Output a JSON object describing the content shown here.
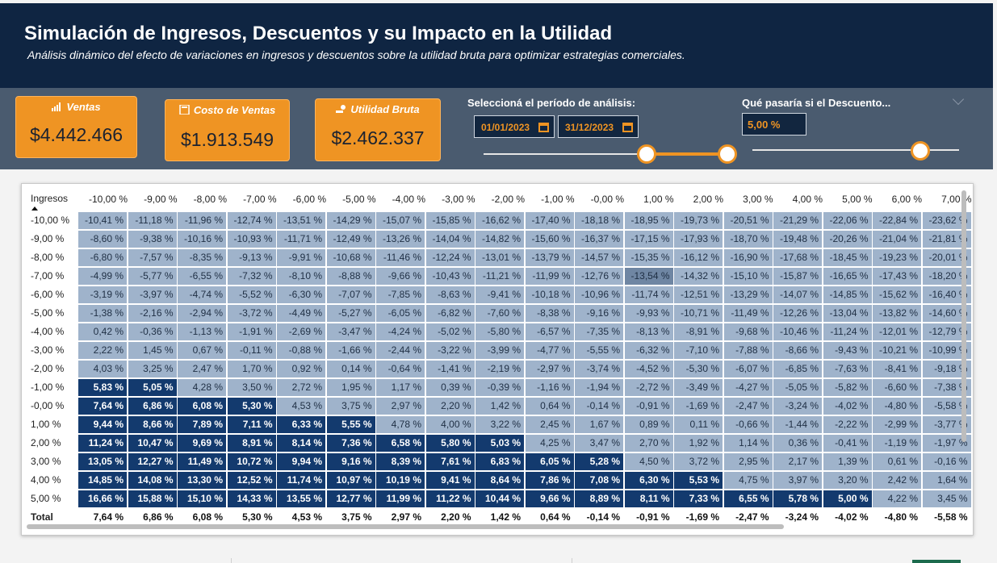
{
  "header": {
    "title": "Simulación de Ingresos, Descuentos y su Impacto en la Utilidad",
    "subtitle": "Análisis dinámico del efecto de variaciones en ingresos y descuentos sobre la utilidad bruta para optimizar estrategias comerciales."
  },
  "kpis": {
    "ventas": {
      "label": "Ventas",
      "value": "$4.442.466",
      "icon": "bar-chart-icon"
    },
    "costo": {
      "label": "Costo de Ventas",
      "value": "$1.913.549",
      "icon": "calculator-icon"
    },
    "utilidad": {
      "label": "Utilidad Bruta",
      "value": "$2.462.337",
      "icon": "money-hand-icon"
    }
  },
  "period_slicer": {
    "title": "Seleccioná el período de análisis:",
    "start": "01/01/2023",
    "end": "31/12/2023",
    "range_fraction": [
      0.0,
      1.0
    ]
  },
  "discount_slicer": {
    "title": "Qué pasaría si el Descuento...",
    "value": "5,00 %",
    "position_fraction": 0.9
  },
  "matrix": {
    "corner_label": "Ingresos",
    "columns": [
      "-10,00 %",
      "-9,00 %",
      "-8,00 %",
      "-7,00 %",
      "-6,00 %",
      "-5,00 %",
      "-4,00 %",
      "-3,00 %",
      "-2,00 %",
      "-1,00 %",
      "-0,00 %",
      "1,00 %",
      "2,00 %",
      "3,00 %",
      "4,00 %",
      "5,00 %",
      "6,00 %",
      "7,00 %"
    ],
    "rows": [
      {
        "label": "-10,00 %",
        "values": [
          "-10,41 %",
          "-11,18 %",
          "-11,96 %",
          "-12,74 %",
          "-13,51 %",
          "-14,29 %",
          "-15,07 %",
          "-15,85 %",
          "-16,62 %",
          "-17,40 %",
          "-18,18 %",
          "-18,95 %",
          "-19,73 %",
          "-20,51 %",
          "-21,29 %",
          "-22,06 %",
          "-22,84 %",
          "-23,62 %"
        ]
      },
      {
        "label": "-9,00 %",
        "values": [
          "-8,60 %",
          "-9,38 %",
          "-10,16 %",
          "-10,93 %",
          "-11,71 %",
          "-12,49 %",
          "-13,26 %",
          "-14,04 %",
          "-14,82 %",
          "-15,60 %",
          "-16,37 %",
          "-17,15 %",
          "-17,93 %",
          "-18,70 %",
          "-19,48 %",
          "-20,26 %",
          "-21,04 %",
          "-21,81 %"
        ]
      },
      {
        "label": "-8,00 %",
        "values": [
          "-6,80 %",
          "-7,57 %",
          "-8,35 %",
          "-9,13 %",
          "-9,91 %",
          "-10,68 %",
          "-11,46 %",
          "-12,24 %",
          "-13,01 %",
          "-13,79 %",
          "-14,57 %",
          "-15,35 %",
          "-16,12 %",
          "-16,90 %",
          "-17,68 %",
          "-18,45 %",
          "-19,23 %",
          "-20,01 %"
        ]
      },
      {
        "label": "-7,00 %",
        "values": [
          "-4,99 %",
          "-5,77 %",
          "-6,55 %",
          "-7,32 %",
          "-8,10 %",
          "-8,88 %",
          "-9,66 %",
          "-10,43 %",
          "-11,21 %",
          "-11,99 %",
          "-12,76 %",
          "-13,54 %",
          "-14,32 %",
          "-15,10 %",
          "-15,87 %",
          "-16,65 %",
          "-17,43 %",
          "-18,20 %"
        ]
      },
      {
        "label": "-6,00 %",
        "values": [
          "-3,19 %",
          "-3,97 %",
          "-4,74 %",
          "-5,52 %",
          "-6,30 %",
          "-7,07 %",
          "-7,85 %",
          "-8,63 %",
          "-9,41 %",
          "-10,18 %",
          "-10,96 %",
          "-11,74 %",
          "-12,51 %",
          "-13,29 %",
          "-14,07 %",
          "-14,85 %",
          "-15,62 %",
          "-16,40 %"
        ]
      },
      {
        "label": "-5,00 %",
        "values": [
          "-1,38 %",
          "-2,16 %",
          "-2,94 %",
          "-3,72 %",
          "-4,49 %",
          "-5,27 %",
          "-6,05 %",
          "-6,82 %",
          "-7,60 %",
          "-8,38 %",
          "-9,16 %",
          "-9,93 %",
          "-10,71 %",
          "-11,49 %",
          "-12,26 %",
          "-13,04 %",
          "-13,82 %",
          "-14,60 %"
        ]
      },
      {
        "label": "-4,00 %",
        "values": [
          "0,42 %",
          "-0,36 %",
          "-1,13 %",
          "-1,91 %",
          "-2,69 %",
          "-3,47 %",
          "-4,24 %",
          "-5,02 %",
          "-5,80 %",
          "-6,57 %",
          "-7,35 %",
          "-8,13 %",
          "-8,91 %",
          "-9,68 %",
          "-10,46 %",
          "-11,24 %",
          "-12,01 %",
          "-12,79 %"
        ]
      },
      {
        "label": "-3,00 %",
        "values": [
          "2,22 %",
          "1,45 %",
          "0,67 %",
          "-0,11 %",
          "-0,88 %",
          "-1,66 %",
          "-2,44 %",
          "-3,22 %",
          "-3,99 %",
          "-4,77 %",
          "-5,55 %",
          "-6,32 %",
          "-7,10 %",
          "-7,88 %",
          "-8,66 %",
          "-9,43 %",
          "-10,21 %",
          "-10,99 %"
        ]
      },
      {
        "label": "-2,00 %",
        "values": [
          "4,03 %",
          "3,25 %",
          "2,47 %",
          "1,70 %",
          "0,92 %",
          "0,14 %",
          "-0,64 %",
          "-1,41 %",
          "-2,19 %",
          "-2,97 %",
          "-3,74 %",
          "-4,52 %",
          "-5,30 %",
          "-6,07 %",
          "-6,85 %",
          "-7,63 %",
          "-8,41 %",
          "-9,18 %"
        ]
      },
      {
        "label": "-1,00 %",
        "values": [
          "5,83 %",
          "5,05 %",
          "4,28 %",
          "3,50 %",
          "2,72 %",
          "1,95 %",
          "1,17 %",
          "0,39 %",
          "-0,39 %",
          "-1,16 %",
          "-1,94 %",
          "-2,72 %",
          "-3,49 %",
          "-4,27 %",
          "-5,05 %",
          "-5,82 %",
          "-6,60 %",
          "-7,38 %"
        ]
      },
      {
        "label": "-0,00 %",
        "values": [
          "7,64 %",
          "6,86 %",
          "6,08 %",
          "5,30 %",
          "4,53 %",
          "3,75 %",
          "2,97 %",
          "2,20 %",
          "1,42 %",
          "0,64 %",
          "-0,14 %",
          "-0,91 %",
          "-1,69 %",
          "-2,47 %",
          "-3,24 %",
          "-4,02 %",
          "-4,80 %",
          "-5,58 %"
        ]
      },
      {
        "label": "1,00 %",
        "values": [
          "9,44 %",
          "8,66 %",
          "7,89 %",
          "7,11 %",
          "6,33 %",
          "5,55 %",
          "4,78 %",
          "4,00 %",
          "3,22 %",
          "2,45 %",
          "1,67 %",
          "0,89 %",
          "0,11 %",
          "-0,66 %",
          "-1,44 %",
          "-2,22 %",
          "-2,99 %",
          "-3,77 %"
        ]
      },
      {
        "label": "2,00 %",
        "values": [
          "11,24 %",
          "10,47 %",
          "9,69 %",
          "8,91 %",
          "8,14 %",
          "7,36 %",
          "6,58 %",
          "5,80 %",
          "5,03 %",
          "4,25 %",
          "3,47 %",
          "2,70 %",
          "1,92 %",
          "1,14 %",
          "0,36 %",
          "-0,41 %",
          "-1,19 %",
          "-1,97 %"
        ]
      },
      {
        "label": "3,00 %",
        "values": [
          "13,05 %",
          "12,27 %",
          "11,49 %",
          "10,72 %",
          "9,94 %",
          "9,16 %",
          "8,39 %",
          "7,61 %",
          "6,83 %",
          "6,05 %",
          "5,28 %",
          "4,50 %",
          "3,72 %",
          "2,95 %",
          "2,17 %",
          "1,39 %",
          "0,61 %",
          "-0,16 %"
        ]
      },
      {
        "label": "4,00 %",
        "values": [
          "14,85 %",
          "14,08 %",
          "13,30 %",
          "12,52 %",
          "11,74 %",
          "10,97 %",
          "10,19 %",
          "9,41 %",
          "8,64 %",
          "7,86 %",
          "7,08 %",
          "6,30 %",
          "5,53 %",
          "4,75 %",
          "3,97 %",
          "3,20 %",
          "2,42 %",
          "1,64 %"
        ]
      },
      {
        "label": "5,00 %",
        "values": [
          "16,66 %",
          "15,88 %",
          "15,10 %",
          "14,33 %",
          "13,55 %",
          "12,77 %",
          "11,99 %",
          "11,22 %",
          "10,44 %",
          "9,66 %",
          "8,89 %",
          "8,11 %",
          "7,33 %",
          "6,55 %",
          "5,78 %",
          "5,00 %",
          "4,22 %",
          "3,45 %"
        ]
      }
    ],
    "highlights": [
      {
        "row": 9,
        "cols": [
          0,
          1
        ]
      },
      {
        "row": 10,
        "cols": [
          0,
          1,
          2,
          3
        ]
      },
      {
        "row": 11,
        "cols": [
          0,
          1,
          2,
          3,
          4,
          5
        ]
      },
      {
        "row": 12,
        "cols": [
          0,
          1,
          2,
          3,
          4,
          5,
          6,
          7,
          8
        ]
      },
      {
        "row": 13,
        "cols": [
          0,
          1,
          2,
          3,
          4,
          5,
          6,
          7,
          8,
          9,
          10
        ]
      },
      {
        "row": 14,
        "cols": [
          0,
          1,
          2,
          3,
          4,
          5,
          6,
          7,
          8,
          9,
          10,
          11,
          12
        ]
      },
      {
        "row": 15,
        "cols": [
          0,
          1,
          2,
          3,
          4,
          5,
          6,
          7,
          8,
          9,
          10,
          11,
          12,
          13,
          14,
          15
        ]
      }
    ],
    "mid_cells": [
      {
        "row": 3,
        "col": 11
      }
    ],
    "total": {
      "label": "Total",
      "values": [
        "7,64 %",
        "6,86 %",
        "6,08 %",
        "5,30 %",
        "4,53 %",
        "3,75 %",
        "2,97 %",
        "2,20 %",
        "1,42 %",
        "0,64 %",
        "-0,14 %",
        "-0,91 %",
        "-1,69 %",
        "-2,47 %",
        "-3,24 %",
        "-4,02 %",
        "-4,80 %",
        "-5,58 %"
      ]
    }
  },
  "colors": {
    "accent": "#ef9423",
    "header_bg": "#0f2542",
    "cell_low": "#9fb3cb",
    "cell_high": "#133a6e"
  }
}
